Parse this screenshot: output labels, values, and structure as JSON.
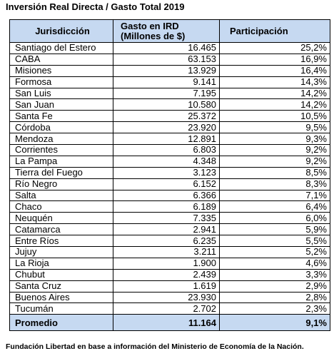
{
  "title": "Inversión Real Directa / Gasto Total 2019",
  "table": {
    "header": [
      "Jurisdicción",
      [
        "Gasto en IRD",
        "(Millones de $)"
      ],
      "Participación"
    ],
    "rows": [
      [
        "Santiago del Estero",
        "16.465",
        "25,2%"
      ],
      [
        "CABA",
        "63.153",
        "16,9%"
      ],
      [
        "Misiones",
        "13.929",
        "16,4%"
      ],
      [
        "Formosa",
        "9.141",
        "14,3%"
      ],
      [
        "San Luis",
        "7.195",
        "14,2%"
      ],
      [
        "San Juan",
        "10.580",
        "14,2%"
      ],
      [
        "Santa Fe",
        "25.372",
        "10,5%"
      ],
      [
        "Córdoba",
        "23.920",
        "9,5%"
      ],
      [
        "Mendoza",
        "12.891",
        "9,3%"
      ],
      [
        "Corrientes",
        "6.803",
        "9,2%"
      ],
      [
        "La Pampa",
        "4.348",
        "9,2%"
      ],
      [
        "Tierra del Fuego",
        "3.123",
        "8,5%"
      ],
      [
        "Río Negro",
        "6.152",
        "8,3%"
      ],
      [
        "Salta",
        "6.366",
        "7,1%"
      ],
      [
        "Chaco",
        "6.189",
        "6,4%"
      ],
      [
        "Neuquén",
        "7.335",
        "6,0%"
      ],
      [
        "Catamarca",
        "2.941",
        "5,9%"
      ],
      [
        "Entre Ríos",
        "6.235",
        "5,5%"
      ],
      [
        "Jujuy",
        "3.211",
        "5,2%"
      ],
      [
        "La Rioja",
        "1.900",
        "4,6%"
      ],
      [
        "Chubut",
        "2.439",
        "3,3%"
      ],
      [
        "Santa Cruz",
        "1.619",
        "2,9%"
      ],
      [
        "Buenos Aires",
        "23.930",
        "2,8%"
      ],
      [
        "Tucumán",
        "2.702",
        "2,3%"
      ]
    ],
    "footer": [
      "Promedio",
      "11.164",
      "9,1%"
    ]
  },
  "source": "Fundación Libertad en base a información del Ministerio de Economía de la Nación."
}
